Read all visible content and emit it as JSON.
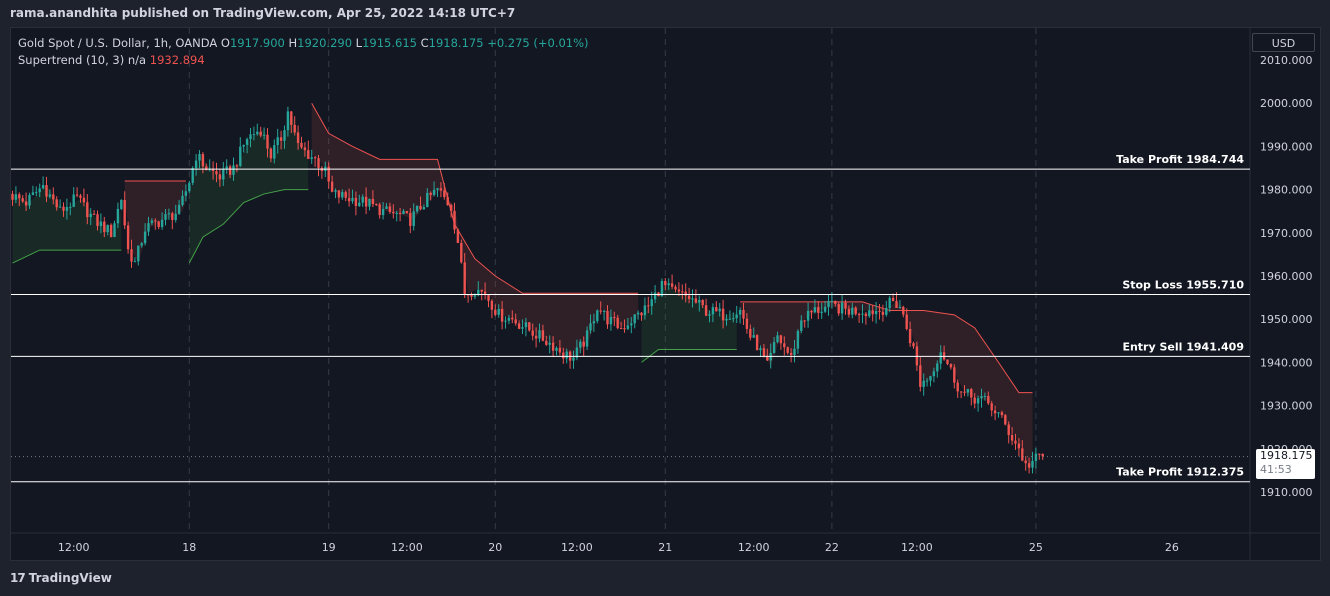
{
  "header": {
    "published_line": "rama.anandhita published on TradingView.com, Apr 25, 2022 14:18 UTC+7"
  },
  "legend": {
    "symbol": "Gold Spot / U.S. Dollar, 1h, OANDA",
    "o_label": "O",
    "o_value": "1917.900",
    "h_label": "H",
    "h_value": "1920.290",
    "l_label": "L",
    "l_value": "1915.615",
    "c_label": "C",
    "c_value": "1918.175",
    "change": "+0.275 (+0.01%)",
    "indicator": "Supertrend (10, 3)",
    "indicator_na": "n/a",
    "indicator_value": "1932.894"
  },
  "currency_button": "USD",
  "last_price": {
    "value": "1918.175",
    "countdown": "41:53"
  },
  "brand": {
    "logo": "17",
    "name": "TradingView"
  },
  "colors": {
    "up": "#26a69a",
    "down": "#ef5350",
    "background": "#131722",
    "frame": "#1e222d",
    "level_line": "#ffffff",
    "supertrend_up": "#43a047",
    "supertrend_down": "#ef5350"
  },
  "chart_data": {
    "type": "candlestick",
    "title": "Gold Spot / U.S. Dollar, 1h, OANDA",
    "ylim": [
      1900,
      2015
    ],
    "y_ticks": [
      1910,
      1920,
      1930,
      1940,
      1950,
      1960,
      1970,
      1980,
      1990,
      2000,
      2010
    ],
    "y_tick_labels": [
      "1910.000",
      "1920.000",
      "1930.000",
      "1940.000",
      "1950.000",
      "1960.000",
      "1970.000",
      "1980.000",
      "1990.000",
      "2000.000",
      "2010.000"
    ],
    "x_ticks": [
      {
        "label": "12:00",
        "bar": 18
      },
      {
        "label": "18",
        "bar": 52
      },
      {
        "label": "19",
        "bar": 93
      },
      {
        "label": "12:00",
        "bar": 116
      },
      {
        "label": "20",
        "bar": 142
      },
      {
        "label": "12:00",
        "bar": 166
      },
      {
        "label": "21",
        "bar": 192
      },
      {
        "label": "12:00",
        "bar": 218
      },
      {
        "label": "22",
        "bar": 241
      },
      {
        "label": "12:00",
        "bar": 266
      },
      {
        "label": "25",
        "bar": 301
      },
      {
        "label": "26",
        "bar": 341
      }
    ],
    "separators": [
      52,
      93,
      142,
      192,
      241,
      301
    ],
    "bar_count": 355,
    "levels": [
      {
        "label": "Take Profit 1984.744",
        "price": 1984.744
      },
      {
        "label": "Stop Loss 1955.710",
        "price": 1955.71
      },
      {
        "label": "Entry Sell 1941.409",
        "price": 1941.409
      },
      {
        "label": "Take Profit 1912.375",
        "price": 1912.375
      }
    ],
    "price_anchors": [
      [
        0,
        1979
      ],
      [
        5,
        1977
      ],
      [
        10,
        1981
      ],
      [
        15,
        1975
      ],
      [
        20,
        1978
      ],
      [
        25,
        1973
      ],
      [
        30,
        1970
      ],
      [
        33,
        1978
      ],
      [
        35,
        1966
      ],
      [
        37,
        1963
      ],
      [
        40,
        1971
      ],
      [
        45,
        1973
      ],
      [
        50,
        1975
      ],
      [
        53,
        1982
      ],
      [
        55,
        1988
      ],
      [
        58,
        1985
      ],
      [
        62,
        1983
      ],
      [
        66,
        1985
      ],
      [
        70,
        1992
      ],
      [
        74,
        1994
      ],
      [
        77,
        1988
      ],
      [
        80,
        1992
      ],
      [
        82,
        1998
      ],
      [
        85,
        1990
      ],
      [
        90,
        1987
      ],
      [
        93,
        1984
      ],
      [
        95,
        1979
      ],
      [
        100,
        1978
      ],
      [
        105,
        1977
      ],
      [
        110,
        1975
      ],
      [
        115,
        1974
      ],
      [
        118,
        1973
      ],
      [
        122,
        1977
      ],
      [
        126,
        1980
      ],
      [
        130,
        1976
      ],
      [
        132,
        1968
      ],
      [
        134,
        1956
      ],
      [
        137,
        1957
      ],
      [
        140,
        1956
      ],
      [
        144,
        1951
      ],
      [
        148,
        1950
      ],
      [
        152,
        1948
      ],
      [
        156,
        1946
      ],
      [
        160,
        1944
      ],
      [
        163,
        1942
      ],
      [
        166,
        1941
      ],
      [
        170,
        1946
      ],
      [
        173,
        1953
      ],
      [
        176,
        1950
      ],
      [
        180,
        1948
      ],
      [
        185,
        1951
      ],
      [
        188,
        1953
      ],
      [
        192,
        1958
      ],
      [
        196,
        1956
      ],
      [
        200,
        1955
      ],
      [
        205,
        1952
      ],
      [
        210,
        1951
      ],
      [
        215,
        1952
      ],
      [
        218,
        1946
      ],
      [
        220,
        1944
      ],
      [
        223,
        1939
      ],
      [
        226,
        1946
      ],
      [
        230,
        1941
      ],
      [
        233,
        1950
      ],
      [
        237,
        1952
      ],
      [
        242,
        1953
      ],
      [
        247,
        1952
      ],
      [
        252,
        1952
      ],
      [
        256,
        1952
      ],
      [
        260,
        1954
      ],
      [
        262,
        1953
      ],
      [
        264,
        1948
      ],
      [
        266,
        1943
      ],
      [
        268,
        1935
      ],
      [
        271,
        1937
      ],
      [
        274,
        1943
      ],
      [
        277,
        1938
      ],
      [
        280,
        1933
      ],
      [
        283,
        1932
      ],
      [
        287,
        1931
      ],
      [
        291,
        1928
      ],
      [
        294,
        1924
      ],
      [
        297,
        1920
      ],
      [
        299,
        1916
      ],
      [
        301,
        1917
      ],
      [
        303,
        1918.175
      ]
    ],
    "supertrend": [
      {
        "dir": "up",
        "points": [
          [
            0,
            1963
          ],
          [
            8,
            1966
          ],
          [
            32,
            1966
          ]
        ]
      },
      {
        "dir": "down",
        "points": [
          [
            33,
            1982
          ],
          [
            51,
            1982
          ]
        ]
      },
      {
        "dir": "up",
        "points": [
          [
            52,
            1963
          ],
          [
            56,
            1969
          ],
          [
            62,
            1972
          ],
          [
            68,
            1977
          ],
          [
            74,
            1979
          ],
          [
            80,
            1980
          ],
          [
            87,
            1980
          ]
        ]
      },
      {
        "dir": "down",
        "points": [
          [
            88,
            2000
          ],
          [
            93,
            1993
          ],
          [
            100,
            1990
          ],
          [
            108,
            1987
          ],
          [
            118,
            1987
          ],
          [
            125,
            1987
          ],
          [
            130,
            1972
          ],
          [
            136,
            1964
          ],
          [
            142,
            1960
          ],
          [
            150,
            1956
          ],
          [
            160,
            1956
          ],
          [
            184,
            1956
          ]
        ]
      },
      {
        "dir": "up",
        "points": [
          [
            185,
            1940
          ],
          [
            190,
            1943
          ],
          [
            200,
            1943
          ],
          [
            213,
            1943
          ]
        ]
      },
      {
        "dir": "down",
        "points": [
          [
            214,
            1954
          ],
          [
            230,
            1954
          ],
          [
            250,
            1954
          ],
          [
            258,
            1952
          ],
          [
            268,
            1952
          ],
          [
            277,
            1951
          ],
          [
            283,
            1948
          ],
          [
            290,
            1940
          ],
          [
            296,
            1933
          ],
          [
            300,
            1933
          ]
        ]
      }
    ]
  }
}
